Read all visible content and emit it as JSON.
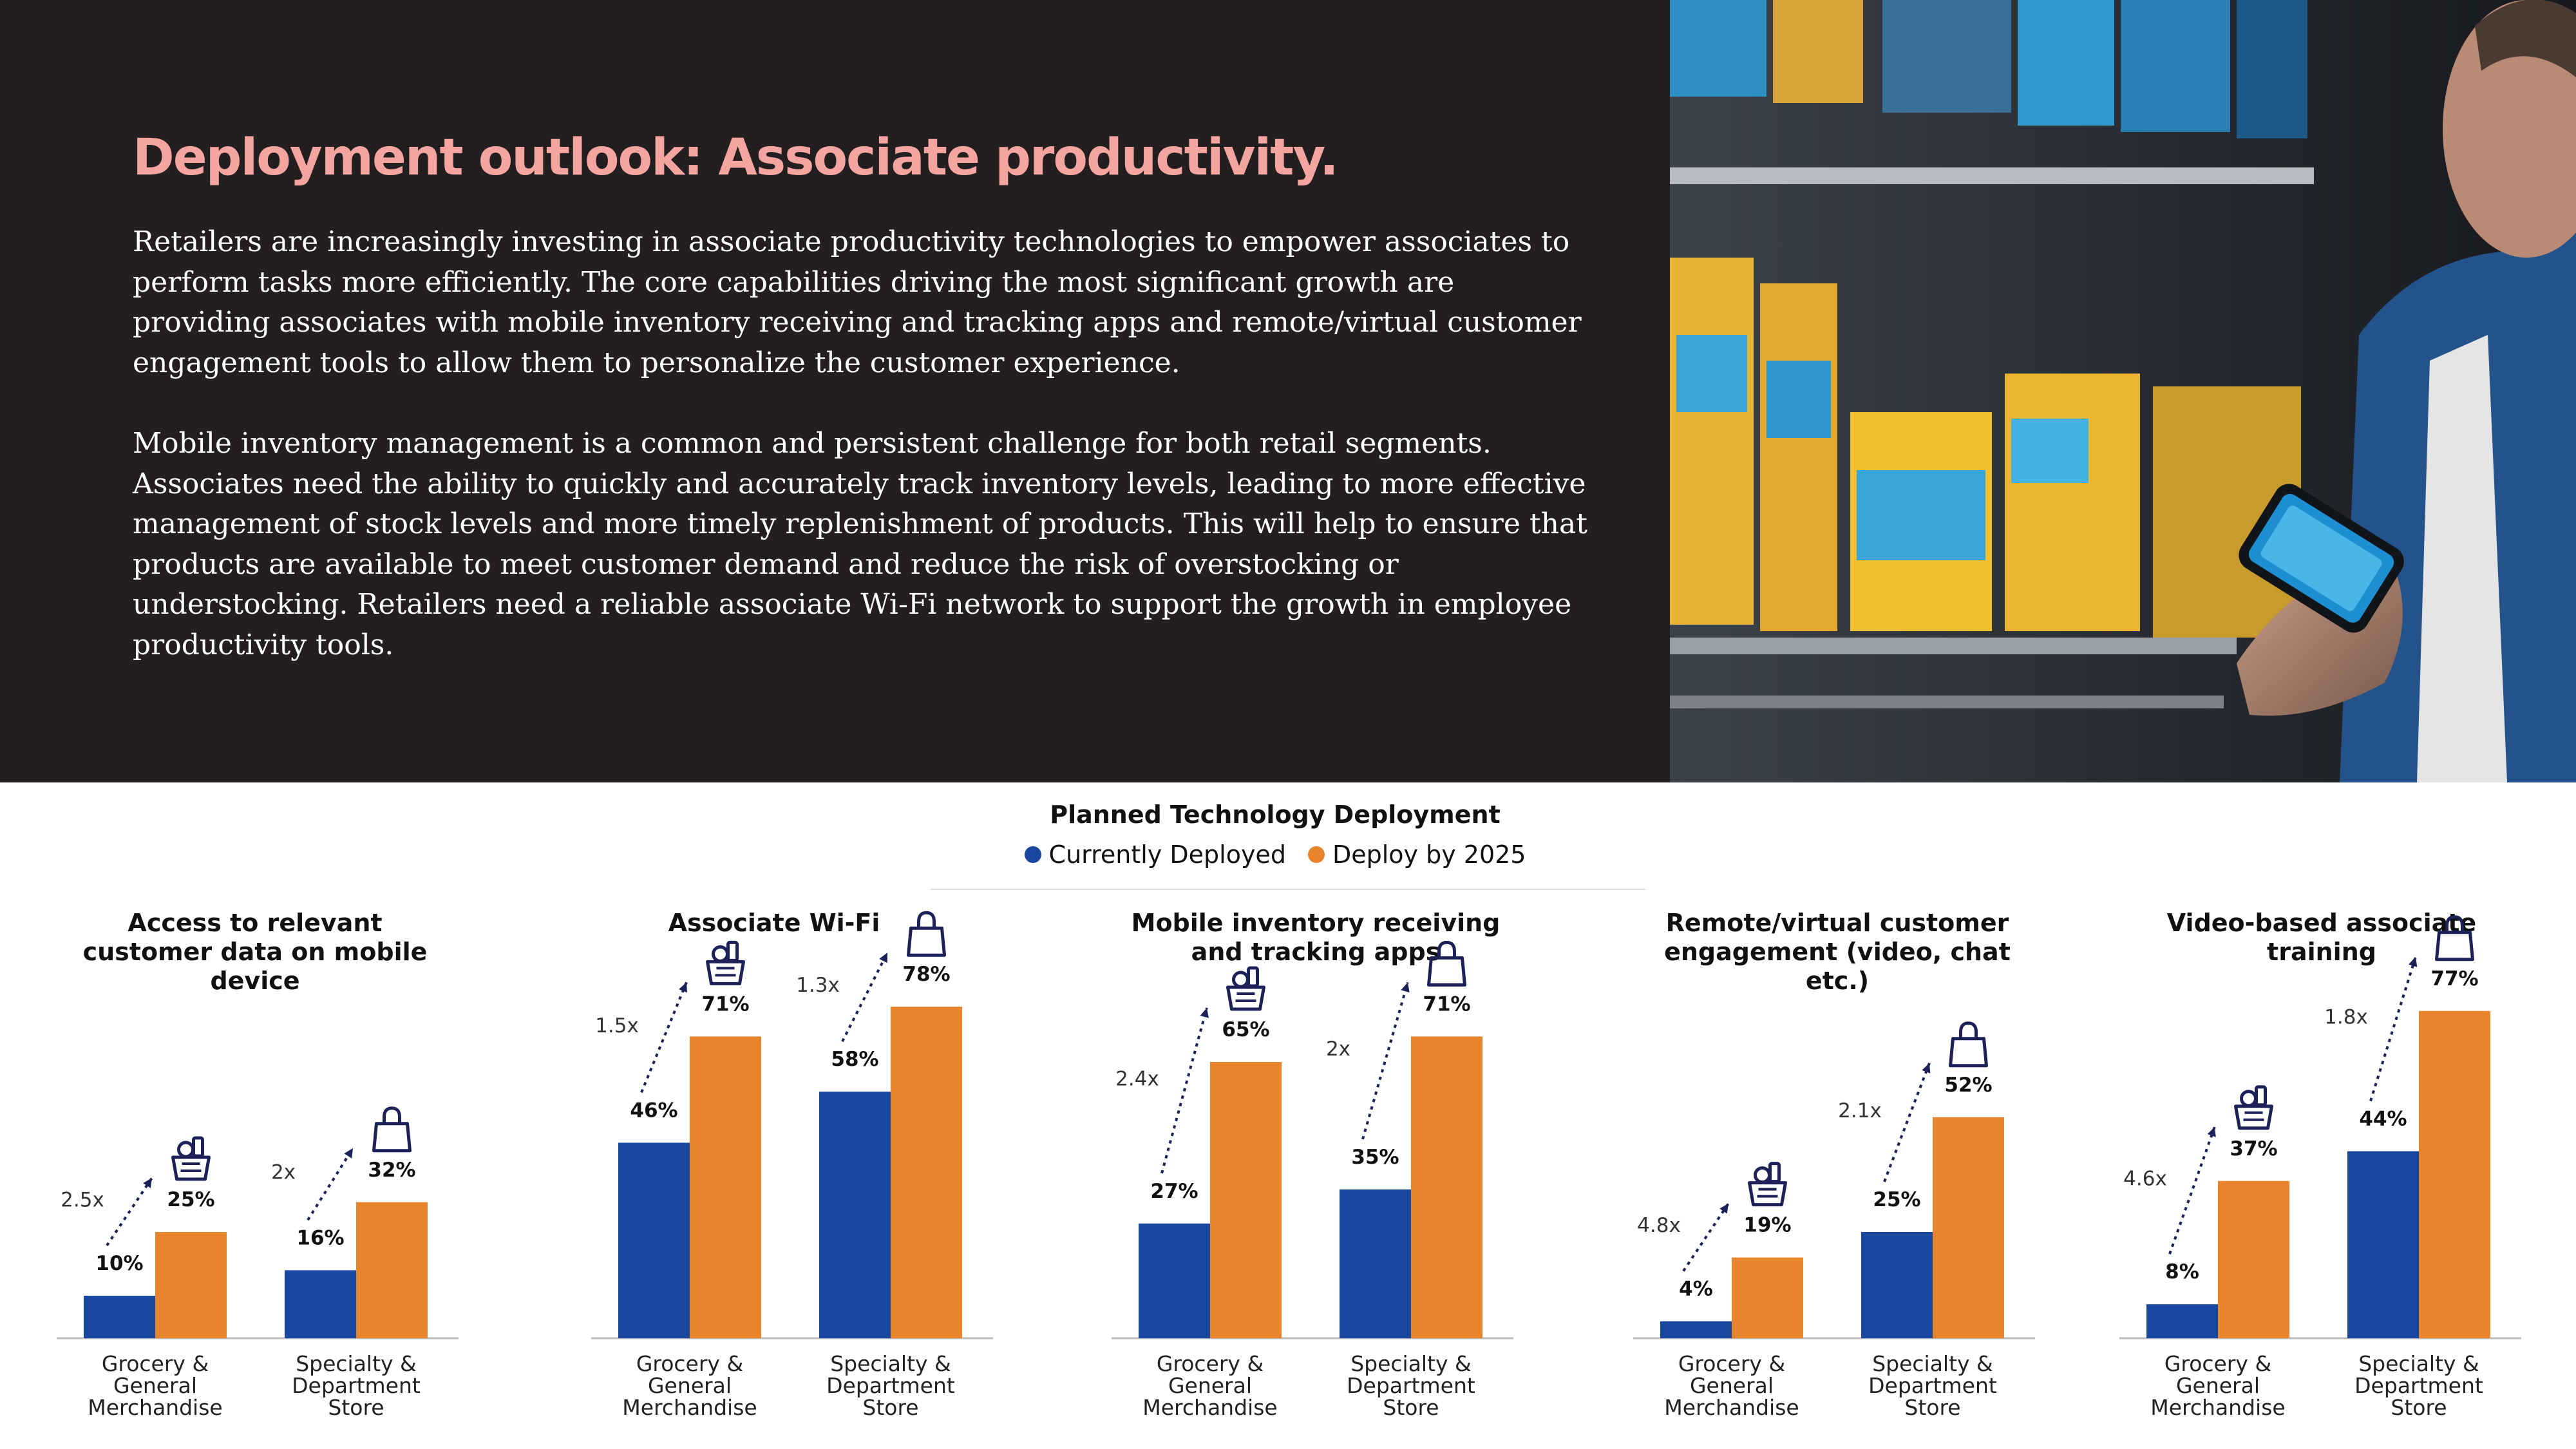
{
  "hero": {
    "title": "Deployment outlook: Associate productivity.",
    "paragraph1": "Retailers are increasingly investing in associate productivity technologies to empower associates to perform tasks more efficiently.  The core capabilities driving the most significant growth are providing associates with mobile inventory receiving and tracking apps and remote/virtual customer engagement tools to allow them to personalize the customer experience.",
    "paragraph2": "Mobile inventory management is a common and persistent challenge for both retail segments. Associates need the ability to quickly and accurately track inventory levels, leading to more effective management of stock levels and more timely replenishment of products. This will help to ensure that products are available to meet customer demand and reduce the risk of overstocking or understocking. Retailers need a reliable associate Wi-Fi network to support the growth in employee productivity tools.",
    "background_color": "#231f20",
    "title_color": "#f4a5a0"
  },
  "photo": {
    "icon": "associate-with-smartphone-photo"
  },
  "deployment": {
    "title": "Planned Technology Deployment",
    "legend": [
      {
        "label": "Currently Deployed",
        "color": "#1a47a0"
      },
      {
        "label": "Deploy by 2025",
        "color": "#e8842c"
      }
    ]
  },
  "chart_data": [
    {
      "type": "bar",
      "title": "Access to relevant customer data on mobile device",
      "categories": [
        "Grocery & General Merchandise",
        "Specialty & Department Store"
      ],
      "category_icons": [
        "basket-icon",
        "shopping-bag-icon"
      ],
      "series": [
        {
          "name": "Currently Deployed",
          "values": [
            10,
            16
          ]
        },
        {
          "name": "Deploy by 2025",
          "values": [
            25,
            32
          ]
        }
      ],
      "data_labels": [
        [
          "10%",
          "16%"
        ],
        [
          "25%",
          "32%"
        ]
      ],
      "growth": [
        "2.5x",
        "2x"
      ],
      "ylim": [
        0,
        100
      ]
    },
    {
      "type": "bar",
      "title": "Associate Wi-Fi",
      "categories": [
        "Grocery & General Merchandise",
        "Specialty & Department Store"
      ],
      "category_icons": [
        "basket-icon",
        "shopping-bag-icon"
      ],
      "series": [
        {
          "name": "Currently Deployed",
          "values": [
            46,
            58
          ]
        },
        {
          "name": "Deploy by 2025",
          "values": [
            71,
            78
          ]
        }
      ],
      "data_labels": [
        [
          "46%",
          "58%"
        ],
        [
          "71%",
          "78%"
        ]
      ],
      "growth": [
        "1.5x",
        "1.3x"
      ],
      "ylim": [
        0,
        100
      ]
    },
    {
      "type": "bar",
      "title": "Mobile inventory receiving and tracking apps",
      "categories": [
        "Grocery & General Merchandise",
        "Specialty & Department Store"
      ],
      "category_icons": [
        "basket-icon",
        "shopping-bag-icon"
      ],
      "series": [
        {
          "name": "Currently Deployed",
          "values": [
            27,
            35
          ]
        },
        {
          "name": "Deploy by 2025",
          "values": [
            65,
            71
          ]
        }
      ],
      "data_labels": [
        [
          "27%",
          "35%"
        ],
        [
          "65%",
          "71%"
        ]
      ],
      "growth": [
        "2.4x",
        "2x"
      ],
      "ylim": [
        0,
        100
      ]
    },
    {
      "type": "bar",
      "title": "Remote/virtual customer engagement (video, chat etc.)",
      "categories": [
        "Grocery & General Merchandise",
        "Specialty & Department Store"
      ],
      "category_icons": [
        "basket-icon",
        "shopping-bag-icon"
      ],
      "series": [
        {
          "name": "Currently Deployed",
          "values": [
            4,
            25
          ]
        },
        {
          "name": "Deploy by 2025",
          "values": [
            19,
            52
          ]
        }
      ],
      "data_labels": [
        [
          "4%",
          "25%"
        ],
        [
          "19%",
          "52%"
        ]
      ],
      "growth": [
        "4.8x",
        "2.1x"
      ],
      "ylim": [
        0,
        100
      ]
    },
    {
      "type": "bar",
      "title": "Video-based associate training",
      "categories": [
        "Grocery & General Merchandise",
        "Specialty & Department Store"
      ],
      "category_icons": [
        "basket-icon",
        "shopping-bag-icon"
      ],
      "series": [
        {
          "name": "Currently Deployed",
          "values": [
            8,
            44
          ]
        },
        {
          "name": "Deploy by 2025",
          "values": [
            37,
            77
          ]
        }
      ],
      "data_labels": [
        [
          "8%",
          "44%"
        ],
        [
          "37%",
          "77%"
        ]
      ],
      "growth": [
        "4.6x",
        "1.8x"
      ],
      "ylim": [
        0,
        100
      ]
    }
  ]
}
